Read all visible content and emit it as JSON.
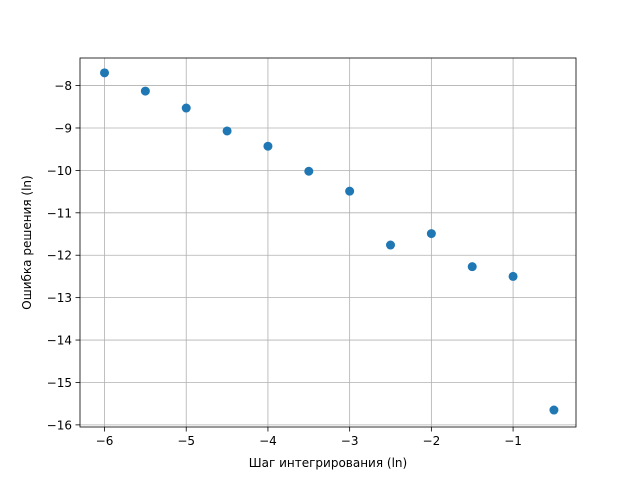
{
  "chart_data": {
    "type": "scatter",
    "xlabel": "Шаг интегрирования (ln)",
    "ylabel": "Ошибка решения (ln)",
    "xlim": [
      -6.3,
      -0.23
    ],
    "ylim": [
      -16.05,
      -7.35
    ],
    "x_ticks": [
      -6,
      -5,
      -4,
      -3,
      -2,
      -1
    ],
    "y_ticks": [
      -16,
      -15,
      -14,
      -13,
      -12,
      -11,
      -10,
      -9,
      -8
    ],
    "grid": true,
    "marker_color": "#1f77b4",
    "points": [
      {
        "x": -6.0,
        "y": -7.7
      },
      {
        "x": -5.5,
        "y": -8.13
      },
      {
        "x": -5.0,
        "y": -8.53
      },
      {
        "x": -4.5,
        "y": -9.07
      },
      {
        "x": -4.0,
        "y": -9.43
      },
      {
        "x": -3.5,
        "y": -10.02
      },
      {
        "x": -3.0,
        "y": -10.49
      },
      {
        "x": -2.5,
        "y": -11.76
      },
      {
        "x": -2.0,
        "y": -11.49
      },
      {
        "x": -1.5,
        "y": -12.27
      },
      {
        "x": -1.0,
        "y": -12.5
      },
      {
        "x": -0.5,
        "y": -15.65
      }
    ]
  }
}
